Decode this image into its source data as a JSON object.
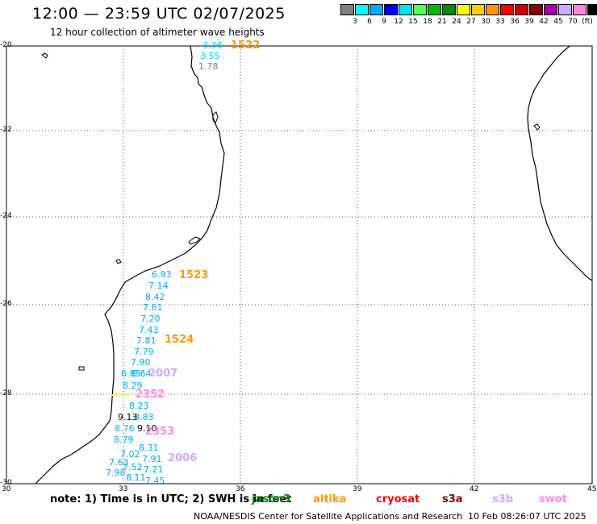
{
  "header": {
    "title": "12:00 — 23:59 UTC 02/07/2025",
    "subtitle": "12 hour collection of altimeter wave heights"
  },
  "color_scale": {
    "colors": [
      "#808080",
      "#00ffff",
      "#00aaff",
      "#0000ff",
      "#00e5e5",
      "#55ff55",
      "#00bb00",
      "#008800",
      "#ffff00",
      "#ffcc00",
      "#ff9900",
      "#ff0000",
      "#cc0000",
      "#880000",
      "#aa00aa",
      "#ccaaff",
      "#ff88dd",
      "#000000"
    ],
    "labels": [
      "3",
      "6",
      "9",
      "12",
      "15",
      "18",
      "21",
      "24",
      "27",
      "30",
      "33",
      "36",
      "39",
      "42",
      "45",
      "70",
      "(ft)"
    ]
  },
  "map": {
    "lat_ticks": [
      "-20",
      "-22",
      "-24",
      "-26",
      "-28",
      "-30"
    ],
    "lon_ticks": [
      "30",
      "33",
      "36",
      "39",
      "42",
      "45"
    ],
    "track_labels": [
      {
        "text": "1522",
        "color": "#ff9900"
      },
      {
        "text": "1523",
        "color": "#ff9900"
      },
      {
        "text": "1524",
        "color": "#ff9900"
      },
      {
        "text": "2007",
        "color": "#ccaaff"
      },
      {
        "text": "2352",
        "color": "#ff88dd"
      },
      {
        "text": "2353",
        "color": "#ff88dd"
      },
      {
        "text": "2006",
        "color": "#ccaaff"
      }
    ],
    "wave_values": [
      {
        "text": "3.36",
        "color": "#00ccff"
      },
      {
        "text": "3.55",
        "color": "#00ccff"
      },
      {
        "text": "1.78",
        "color": "#808080"
      },
      {
        "text": "6.93",
        "color": "#00aaff"
      },
      {
        "text": "7.14",
        "color": "#00aaff"
      },
      {
        "text": "8.42",
        "color": "#00aaff"
      },
      {
        "text": "7.61",
        "color": "#00aaff"
      },
      {
        "text": "7.20",
        "color": "#00aaff"
      },
      {
        "text": "7.43",
        "color": "#00aaff"
      },
      {
        "text": "7.81",
        "color": "#00aaff"
      },
      {
        "text": "7.79",
        "color": "#00aaff"
      },
      {
        "text": "7.90",
        "color": "#00aaff"
      },
      {
        "text": "6.85",
        "color": "#00aaff"
      },
      {
        "text": "6.64",
        "color": "#00aaff"
      },
      {
        "text": "8.29",
        "color": "#00aaff"
      },
      {
        "text": "8.23",
        "color": "#00aaff"
      },
      {
        "text": "9.13",
        "color": "#000000"
      },
      {
        "text": "8.83",
        "color": "#00aaff"
      },
      {
        "text": "8.76",
        "color": "#00aaff"
      },
      {
        "text": "9.10",
        "color": "#000000"
      },
      {
        "text": "8.79",
        "color": "#00aaff"
      },
      {
        "text": "8.31",
        "color": "#00aaff"
      },
      {
        "text": "7.02",
        "color": "#00aaff"
      },
      {
        "text": "7.91",
        "color": "#00aaff"
      },
      {
        "text": "7.63",
        "color": "#00aaff"
      },
      {
        "text": "7.52",
        "color": "#00aaff"
      },
      {
        "text": "7.21",
        "color": "#00aaff"
      },
      {
        "text": "7.98",
        "color": "#00aaff"
      },
      {
        "text": "8.11",
        "color": "#00aaff"
      },
      {
        "text": "7.45",
        "color": "#00aaff"
      }
    ]
  },
  "footer": {
    "note": "note:  1) Time is in UTC; 2) SWH is in feet",
    "satellites": [
      {
        "name": "jason3",
        "color": "#008800"
      },
      {
        "name": "altika",
        "color": "#ff9900"
      },
      {
        "name": "cryosat",
        "color": "#ff0000"
      },
      {
        "name": "s3a",
        "color": "#880000"
      },
      {
        "name": "s3b",
        "color": "#ccaaff"
      },
      {
        "name": "swot",
        "color": "#ff88dd"
      }
    ],
    "credit": "NOAA/NESDIS Center for Satellite Applications and Research",
    "generated": "10 Feb 08:26:07 UTC 2025"
  }
}
